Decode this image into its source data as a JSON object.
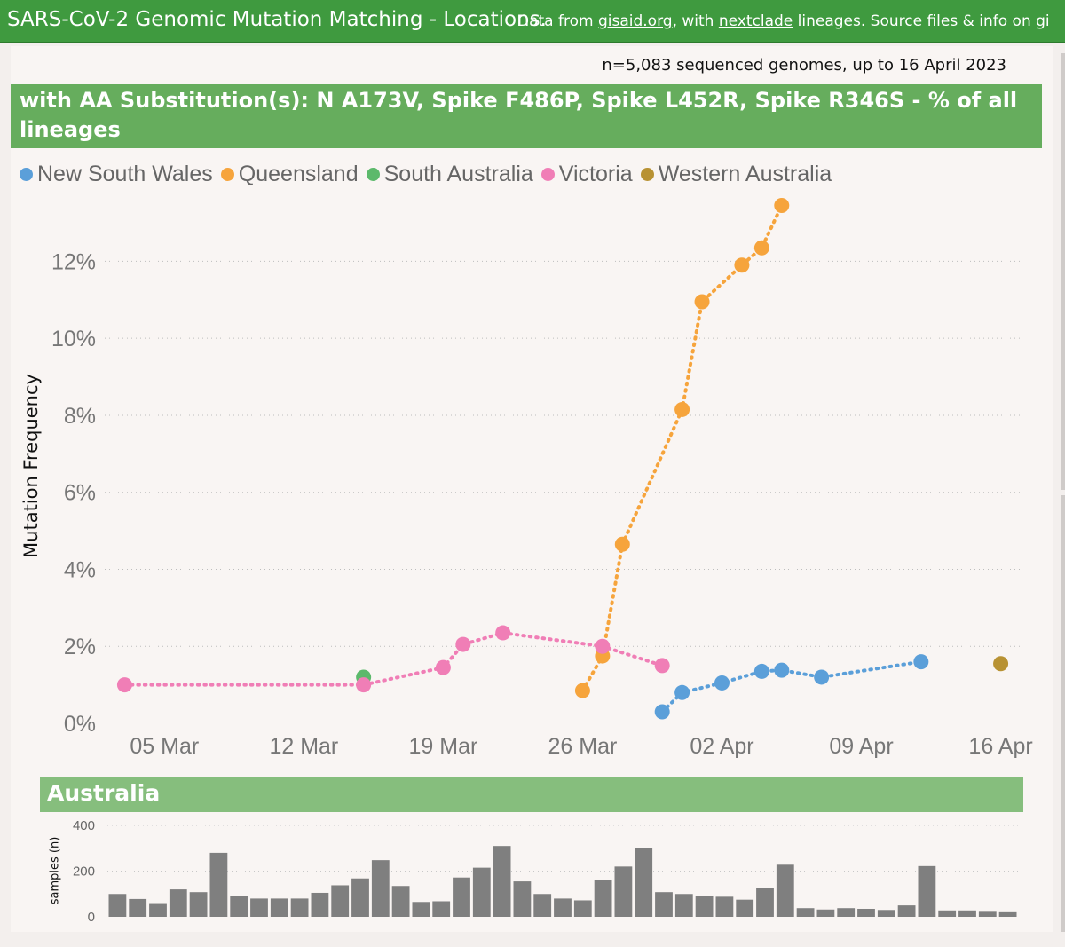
{
  "header": {
    "title": "SARS-CoV-2 Genomic Mutation Matching - Locations.",
    "info_prefix": "Data from ",
    "link_gisaid": "gisaid.org",
    "info_middle": ", with ",
    "link_nextclade": "nextclade",
    "info_suffix": " lineages. Source files & info on gi"
  },
  "sample_note": "n=5,083 sequenced genomes, up to 16 April 2023",
  "colors": {
    "header_bg": "#3f9a3f",
    "title_bg": "#66ad5d",
    "subtitle_bg": "#86be7d",
    "bar": "#7f7f7f"
  },
  "chart_data": [
    {
      "type": "line",
      "title": "with AA Substitution(s): N A173V, Spike F486P, Spike L452R, Spike R346S - % of all lineages",
      "ylabel": "Mutation Frequency",
      "xlabel": "",
      "x_ticks": [
        "05 Mar",
        "12 Mar",
        "19 Mar",
        "26 Mar",
        "02 Apr",
        "09 Apr",
        "16 Apr"
      ],
      "x_range": [
        "2023-03-02",
        "2023-04-17"
      ],
      "y_ticks": [
        "0%",
        "2%",
        "4%",
        "6%",
        "8%",
        "10%",
        "12%"
      ],
      "ylim": [
        0,
        13.9
      ],
      "grid": "horizontal dotted",
      "legend_position": "top-left",
      "series": [
        {
          "name": "New South Wales",
          "color": "#5b9fd9",
          "points": [
            [
              "2023-03-30",
              0.3
            ],
            [
              "2023-03-31",
              0.8
            ],
            [
              "2023-04-02",
              1.05
            ],
            [
              "2023-04-04",
              1.35
            ],
            [
              "2023-04-05",
              1.38
            ],
            [
              "2023-04-07",
              1.2
            ],
            [
              "2023-04-12",
              1.6
            ]
          ]
        },
        {
          "name": "Queensland",
          "color": "#f6a43c",
          "points": [
            [
              "2023-03-26",
              0.85
            ],
            [
              "2023-03-27",
              1.75
            ],
            [
              "2023-03-28",
              4.65
            ],
            [
              "2023-03-31",
              8.15
            ],
            [
              "2023-04-01",
              10.95
            ],
            [
              "2023-04-03",
              11.9
            ],
            [
              "2023-04-04",
              12.35
            ],
            [
              "2023-04-05",
              13.45
            ]
          ]
        },
        {
          "name": "South Australia",
          "color": "#5cb96b",
          "points": [
            [
              "2023-03-15",
              1.2
            ]
          ]
        },
        {
          "name": "Victoria",
          "color": "#f07eb6",
          "points": [
            [
              "2023-03-03",
              1.0
            ],
            [
              "2023-03-15",
              1.0
            ],
            [
              "2023-03-19",
              1.45
            ],
            [
              "2023-03-20",
              2.05
            ],
            [
              "2023-03-22",
              2.35
            ],
            [
              "2023-03-27",
              2.0
            ],
            [
              "2023-03-30",
              1.5
            ]
          ]
        },
        {
          "name": "Western Australia",
          "color": "#b89233",
          "points": [
            [
              "2023-04-16",
              1.55
            ]
          ]
        }
      ]
    },
    {
      "type": "bar",
      "title": "Australia",
      "ylabel": "samples (n)",
      "y_ticks": [
        "0",
        "200",
        "400"
      ],
      "ylim": [
        0,
        400
      ],
      "values": [
        100,
        78,
        60,
        120,
        108,
        280,
        90,
        80,
        80,
        80,
        105,
        138,
        168,
        248,
        135,
        65,
        68,
        172,
        215,
        310,
        155,
        100,
        80,
        72,
        162,
        220,
        302,
        108,
        100,
        92,
        88,
        75,
        125,
        228,
        38,
        32,
        38,
        35,
        30,
        50,
        222,
        28,
        28,
        22,
        20
      ]
    }
  ]
}
